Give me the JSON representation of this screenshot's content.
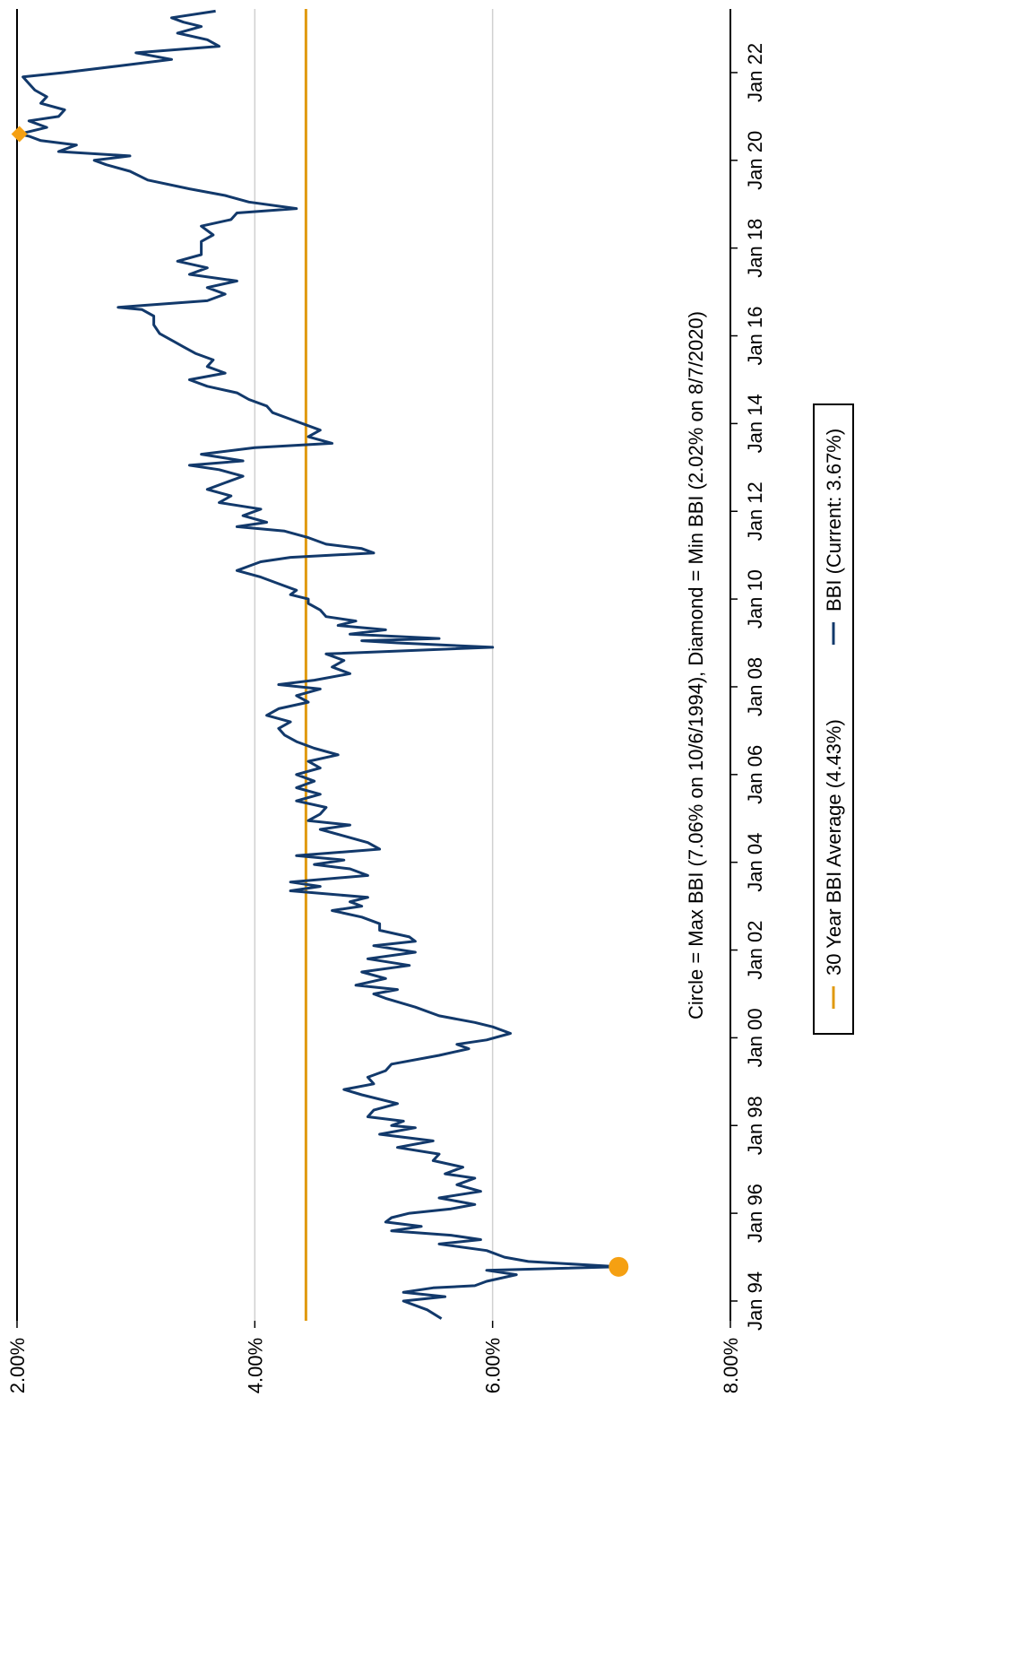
{
  "chart_data": {
    "type": "line",
    "annotation": "Circle = Max BBI (7.06% on 10/6/1994), Diamond = Min BBI (2.02% on 8/7/2020)",
    "y_axis": {
      "ticks": [
        {
          "value": 2.0,
          "label": "2.00%"
        },
        {
          "value": 4.0,
          "label": "4.00%"
        },
        {
          "value": 6.0,
          "label": "6.00%"
        },
        {
          "value": 8.0,
          "label": "8.00%"
        }
      ],
      "range": [
        2.0,
        8.0
      ],
      "grid": true
    },
    "x_axis": {
      "ticks": [
        {
          "value": 1994.0,
          "label": "Jan 94"
        },
        {
          "value": 1996.0,
          "label": "Jan 96"
        },
        {
          "value": 1998.0,
          "label": "Jan 98"
        },
        {
          "value": 2000.0,
          "label": "Jan 00"
        },
        {
          "value": 2002.0,
          "label": "Jan 02"
        },
        {
          "value": 2004.0,
          "label": "Jan 04"
        },
        {
          "value": 2006.0,
          "label": "Jan 06"
        },
        {
          "value": 2008.0,
          "label": "Jan 08"
        },
        {
          "value": 2010.0,
          "label": "Jan 10"
        },
        {
          "value": 2012.0,
          "label": "Jan 12"
        },
        {
          "value": 2014.0,
          "label": "Jan 14"
        },
        {
          "value": 2016.0,
          "label": "Jan 16"
        },
        {
          "value": 2018.0,
          "label": "Jan 18"
        },
        {
          "value": 2020.0,
          "label": "Jan 20"
        },
        {
          "value": 2022.0,
          "label": "Jan 22"
        }
      ],
      "range": [
        1993.55,
        2023.45
      ]
    },
    "series": [
      {
        "name": "BBI (Current: 3.67%)",
        "color": "#12396b",
        "points": [
          [
            1993.6,
            5.57
          ],
          [
            1993.8,
            5.45
          ],
          [
            1994.0,
            5.25
          ],
          [
            1994.1,
            5.6
          ],
          [
            1994.2,
            5.25
          ],
          [
            1994.3,
            5.5
          ],
          [
            1994.35,
            5.85
          ],
          [
            1994.45,
            5.95
          ],
          [
            1994.6,
            6.2
          ],
          [
            1994.7,
            5.95
          ],
          [
            1994.78,
            7.06
          ],
          [
            1994.9,
            6.3
          ],
          [
            1995.0,
            6.1
          ],
          [
            1995.15,
            5.95
          ],
          [
            1995.3,
            5.55
          ],
          [
            1995.4,
            5.9
          ],
          [
            1995.5,
            5.65
          ],
          [
            1995.6,
            5.15
          ],
          [
            1995.7,
            5.4
          ],
          [
            1995.8,
            5.1
          ],
          [
            1995.9,
            5.15
          ],
          [
            1996.0,
            5.3
          ],
          [
            1996.1,
            5.65
          ],
          [
            1996.2,
            5.85
          ],
          [
            1996.35,
            5.55
          ],
          [
            1996.5,
            5.9
          ],
          [
            1996.65,
            5.7
          ],
          [
            1996.8,
            5.85
          ],
          [
            1996.9,
            5.6
          ],
          [
            1997.05,
            5.75
          ],
          [
            1997.2,
            5.5
          ],
          [
            1997.35,
            5.55
          ],
          [
            1997.5,
            5.2
          ],
          [
            1997.65,
            5.5
          ],
          [
            1997.8,
            5.05
          ],
          [
            1997.95,
            5.35
          ],
          [
            1998.0,
            5.15
          ],
          [
            1998.1,
            5.25
          ],
          [
            1998.2,
            4.95
          ],
          [
            1998.35,
            5.0
          ],
          [
            1998.5,
            5.2
          ],
          [
            1998.7,
            4.9
          ],
          [
            1998.82,
            4.75
          ],
          [
            1998.95,
            5.0
          ],
          [
            1999.1,
            4.95
          ],
          [
            1999.25,
            5.1
          ],
          [
            1999.4,
            5.15
          ],
          [
            1999.6,
            5.55
          ],
          [
            1999.75,
            5.8
          ],
          [
            1999.85,
            5.7
          ],
          [
            1999.95,
            5.95
          ],
          [
            2000.1,
            6.15
          ],
          [
            2000.25,
            6.0
          ],
          [
            2000.35,
            5.85
          ],
          [
            2000.5,
            5.55
          ],
          [
            2000.7,
            5.35
          ],
          [
            2000.9,
            5.1
          ],
          [
            2001.0,
            5.0
          ],
          [
            2001.1,
            5.2
          ],
          [
            2001.2,
            4.85
          ],
          [
            2001.35,
            5.1
          ],
          [
            2001.5,
            4.9
          ],
          [
            2001.65,
            5.3
          ],
          [
            2001.8,
            4.95
          ],
          [
            2001.95,
            5.35
          ],
          [
            2002.1,
            5.0
          ],
          [
            2002.2,
            5.35
          ],
          [
            2002.3,
            5.3
          ],
          [
            2002.45,
            5.05
          ],
          [
            2002.6,
            5.05
          ],
          [
            2002.75,
            4.9
          ],
          [
            2002.9,
            4.65
          ],
          [
            2003.0,
            4.9
          ],
          [
            2003.1,
            4.8
          ],
          [
            2003.2,
            4.95
          ],
          [
            2003.35,
            4.3
          ],
          [
            2003.45,
            4.55
          ],
          [
            2003.55,
            4.3
          ],
          [
            2003.7,
            4.95
          ],
          [
            2003.85,
            4.8
          ],
          [
            2003.95,
            4.5
          ],
          [
            2004.05,
            4.75
          ],
          [
            2004.15,
            4.35
          ],
          [
            2004.3,
            5.05
          ],
          [
            2004.45,
            4.95
          ],
          [
            2004.6,
            4.75
          ],
          [
            2004.75,
            4.55
          ],
          [
            2004.85,
            4.8
          ],
          [
            2004.95,
            4.45
          ],
          [
            2005.1,
            4.55
          ],
          [
            2005.25,
            4.6
          ],
          [
            2005.4,
            4.35
          ],
          [
            2005.55,
            4.55
          ],
          [
            2005.7,
            4.35
          ],
          [
            2005.85,
            4.5
          ],
          [
            2006.0,
            4.35
          ],
          [
            2006.15,
            4.55
          ],
          [
            2006.3,
            4.45
          ],
          [
            2006.45,
            4.7
          ],
          [
            2006.6,
            4.5
          ],
          [
            2006.75,
            4.35
          ],
          [
            2006.9,
            4.25
          ],
          [
            2007.05,
            4.2
          ],
          [
            2007.2,
            4.3
          ],
          [
            2007.35,
            4.1
          ],
          [
            2007.5,
            4.2
          ],
          [
            2007.65,
            4.45
          ],
          [
            2007.8,
            4.35
          ],
          [
            2007.95,
            4.55
          ],
          [
            2008.05,
            4.2
          ],
          [
            2008.15,
            4.5
          ],
          [
            2008.3,
            4.8
          ],
          [
            2008.45,
            4.65
          ],
          [
            2008.6,
            4.75
          ],
          [
            2008.75,
            4.6
          ],
          [
            2008.9,
            6.0
          ],
          [
            2009.0,
            5.2
          ],
          [
            2009.05,
            4.9
          ],
          [
            2009.1,
            5.55
          ],
          [
            2009.2,
            4.8
          ],
          [
            2009.3,
            5.1
          ],
          [
            2009.4,
            4.7
          ],
          [
            2009.5,
            4.85
          ],
          [
            2009.6,
            4.6
          ],
          [
            2009.75,
            4.55
          ],
          [
            2009.9,
            4.45
          ],
          [
            2010.0,
            4.45
          ],
          [
            2010.1,
            4.3
          ],
          [
            2010.2,
            4.35
          ],
          [
            2010.35,
            4.2
          ],
          [
            2010.5,
            4.05
          ],
          [
            2010.65,
            3.85
          ],
          [
            2010.75,
            3.95
          ],
          [
            2010.85,
            4.05
          ],
          [
            2010.95,
            4.3
          ],
          [
            2011.05,
            5.0
          ],
          [
            2011.15,
            4.9
          ],
          [
            2011.25,
            4.6
          ],
          [
            2011.4,
            4.45
          ],
          [
            2011.55,
            4.25
          ],
          [
            2011.65,
            3.85
          ],
          [
            2011.75,
            4.1
          ],
          [
            2011.9,
            3.9
          ],
          [
            2012.05,
            4.05
          ],
          [
            2012.2,
            3.7
          ],
          [
            2012.35,
            3.8
          ],
          [
            2012.5,
            3.6
          ],
          [
            2012.65,
            3.75
          ],
          [
            2012.8,
            3.9
          ],
          [
            2012.95,
            3.7
          ],
          [
            2013.05,
            3.45
          ],
          [
            2013.15,
            3.9
          ],
          [
            2013.3,
            3.55
          ],
          [
            2013.45,
            4.0
          ],
          [
            2013.55,
            4.65
          ],
          [
            2013.7,
            4.45
          ],
          [
            2013.85,
            4.55
          ],
          [
            2013.95,
            4.45
          ],
          [
            2014.1,
            4.3
          ],
          [
            2014.25,
            4.15
          ],
          [
            2014.4,
            4.1
          ],
          [
            2014.55,
            3.95
          ],
          [
            2014.7,
            3.85
          ],
          [
            2014.85,
            3.6
          ],
          [
            2015.0,
            3.45
          ],
          [
            2015.15,
            3.75
          ],
          [
            2015.3,
            3.6
          ],
          [
            2015.45,
            3.65
          ],
          [
            2015.6,
            3.5
          ],
          [
            2015.75,
            3.4
          ],
          [
            2015.9,
            3.3
          ],
          [
            2016.05,
            3.2
          ],
          [
            2016.25,
            3.15
          ],
          [
            2016.45,
            3.15
          ],
          [
            2016.6,
            3.05
          ],
          [
            2016.65,
            2.85
          ],
          [
            2016.7,
            3.1
          ],
          [
            2016.8,
            3.6
          ],
          [
            2016.95,
            3.75
          ],
          [
            2017.1,
            3.6
          ],
          [
            2017.25,
            3.85
          ],
          [
            2017.4,
            3.45
          ],
          [
            2017.55,
            3.6
          ],
          [
            2017.7,
            3.35
          ],
          [
            2017.85,
            3.55
          ],
          [
            2018.0,
            3.55
          ],
          [
            2018.15,
            3.55
          ],
          [
            2018.3,
            3.65
          ],
          [
            2018.5,
            3.55
          ],
          [
            2018.65,
            3.8
          ],
          [
            2018.8,
            3.85
          ],
          [
            2018.9,
            4.35
          ],
          [
            2019.05,
            3.95
          ],
          [
            2019.2,
            3.75
          ],
          [
            2019.35,
            3.45
          ],
          [
            2019.55,
            3.1
          ],
          [
            2019.75,
            2.95
          ],
          [
            2019.9,
            2.75
          ],
          [
            2020.0,
            2.65
          ],
          [
            2020.1,
            2.95
          ],
          [
            2020.2,
            2.35
          ],
          [
            2020.35,
            2.5
          ],
          [
            2020.45,
            2.2
          ],
          [
            2020.55,
            2.1
          ],
          [
            2020.6,
            2.02
          ],
          [
            2020.75,
            2.25
          ],
          [
            2020.9,
            2.1
          ],
          [
            2021.0,
            2.35
          ],
          [
            2021.15,
            2.4
          ],
          [
            2021.3,
            2.2
          ],
          [
            2021.45,
            2.25
          ],
          [
            2021.6,
            2.15
          ],
          [
            2021.75,
            2.1
          ],
          [
            2021.9,
            2.05
          ],
          [
            2022.0,
            2.4
          ],
          [
            2022.15,
            2.85
          ],
          [
            2022.3,
            3.3
          ],
          [
            2022.45,
            3.0
          ],
          [
            2022.6,
            3.7
          ],
          [
            2022.75,
            3.6
          ],
          [
            2022.9,
            3.35
          ],
          [
            2023.05,
            3.55
          ],
          [
            2023.15,
            3.4
          ],
          [
            2023.25,
            3.3
          ],
          [
            2023.4,
            3.67
          ]
        ]
      },
      {
        "name": "30 Year BBI Average (4.43%)",
        "color": "#e09a10",
        "constant": 4.43
      }
    ],
    "markers": [
      {
        "shape": "circle",
        "x": 1994.78,
        "y": 7.06,
        "color": "#f5a012"
      },
      {
        "shape": "diamond",
        "x": 2020.6,
        "y": 2.02,
        "color": "#f5a012"
      }
    ],
    "legend": {
      "position": "bottom",
      "items": [
        {
          "label": "30 Year BBI Average (4.43%)",
          "color": "#e09a10"
        },
        {
          "label": "BBI (Current: 3.67%)",
          "color": "#12396b"
        }
      ]
    }
  }
}
